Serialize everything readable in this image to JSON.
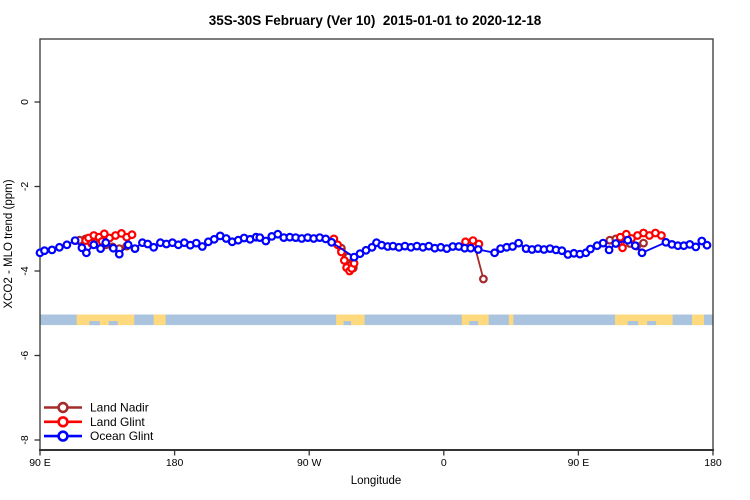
{
  "chart_data": {
    "type": "line",
    "title": "35S-30S February (Ver 10)  2015-01-01 to 2020-12-18",
    "xlabel": "Longitude",
    "ylabel": "XCO2 - MLO trend (ppm)",
    "x_axis": {
      "note": "axis spans 450 degrees of longitude starting at 90E, wrapping through 180, 90W, 0, 90E to 180",
      "range_deg": [
        0,
        450
      ],
      "ticks_deg": [
        0,
        90,
        180,
        270,
        360,
        450
      ],
      "tick_labels": [
        "90 E",
        "180",
        "90 W",
        "0",
        "90 E",
        "180"
      ]
    },
    "y_axis": {
      "ticks": [
        0,
        -2,
        -4,
        -6,
        -8
      ],
      "tick_labels": [
        "0",
        "-2",
        "-4",
        "-6",
        "-8"
      ],
      "range": [
        -8.25,
        1.45
      ],
      "grid": false
    },
    "map_band": {
      "description": "world-map strip showing ocean/land along the longitude axis",
      "y_top_ppm": -5.03,
      "y_bottom_ppm": -5.28,
      "ocean_color": "#aac3df",
      "land_color": "#fed97e",
      "land_patches_deg": [
        [
          24.5,
          63
        ],
        [
          76,
          84
        ],
        [
          198,
          217
        ],
        [
          282,
          300
        ],
        [
          313.5,
          316.5
        ],
        [
          384.5,
          423
        ],
        [
          436,
          444
        ]
      ],
      "coast_inlets_deg": [
        [
          33,
          40
        ],
        [
          46,
          52
        ],
        [
          203,
          208
        ],
        [
          287,
          293
        ],
        [
          393,
          400
        ],
        [
          406,
          412
        ]
      ]
    },
    "legend": {
      "position": "bottom-left",
      "entries": [
        "Land Nadir",
        "Land Glint",
        "Ocean Glint"
      ]
    },
    "series": [
      {
        "name": "Land Nadir",
        "color": "#a52a2a",
        "segments": [
          [
            [
              26.5,
              -3.27
            ],
            [
              30.5,
              -3.24
            ],
            [
              34.5,
              -3.3
            ],
            [
              40,
              -3.33
            ],
            [
              44,
              -3.38
            ],
            [
              48.5,
              -3.43
            ],
            [
              53,
              -3.47
            ],
            [
              58,
              -3.41
            ]
          ],
          [
            [
              201.5,
              -3.46
            ],
            [
              206,
              -3.67
            ],
            [
              208,
              -3.86
            ],
            [
              209.5,
              -3.93
            ]
          ],
          [
            [
              290.5,
              -3.39
            ],
            [
              296.5,
              -4.19
            ]
          ],
          [
            [
              381,
              -3.27
            ],
            [
              385,
              -3.24
            ],
            [
              394.5,
              -3.35
            ],
            [
              399,
              -3.41
            ],
            [
              403.5,
              -3.34
            ]
          ]
        ]
      },
      {
        "name": "Land Glint",
        "color": "#ff0000",
        "segments": [
          [
            [
              30.5,
              -3.28
            ],
            [
              32.5,
              -3.22
            ],
            [
              34.5,
              -3.35
            ],
            [
              36,
              -3.16
            ],
            [
              39.5,
              -3.2
            ],
            [
              41.5,
              -3.3
            ],
            [
              43,
              -3.12
            ],
            [
              46.5,
              -3.22
            ],
            [
              50.5,
              -3.16
            ],
            [
              54.5,
              -3.11
            ],
            [
              58,
              -3.2
            ],
            [
              61.5,
              -3.14
            ]
          ],
          [
            [
              196.5,
              -3.24
            ],
            [
              199,
              -3.38
            ],
            [
              201.5,
              -3.55
            ],
            [
              203.5,
              -3.75
            ],
            [
              205,
              -3.92
            ],
            [
              207,
              -4.0
            ],
            [
              208.5,
              -3.94
            ],
            [
              210,
              -3.82
            ]
          ],
          [
            [
              284.5,
              -3.31
            ],
            [
              289.5,
              -3.28
            ],
            [
              293.5,
              -3.36
            ]
          ],
          [
            [
              388,
              -3.2
            ],
            [
              389.5,
              -3.45
            ],
            [
              392,
              -3.13
            ],
            [
              395.5,
              -3.23
            ],
            [
              399.5,
              -3.16
            ],
            [
              403.5,
              -3.1
            ],
            [
              407.5,
              -3.16
            ],
            [
              411.5,
              -3.1
            ],
            [
              415.5,
              -3.16
            ]
          ]
        ]
      },
      {
        "name": "Ocean Glint",
        "color": "#0000ff",
        "segments": [
          [
            [
              0,
              -3.57
            ],
            [
              3,
              -3.52
            ],
            [
              8,
              -3.5
            ],
            [
              13,
              -3.44
            ],
            [
              18,
              -3.38
            ],
            [
              23.5,
              -3.28
            ],
            [
              28,
              -3.45
            ],
            [
              31,
              -3.57
            ],
            [
              36,
              -3.38
            ],
            [
              40.5,
              -3.47
            ],
            [
              44,
              -3.33
            ],
            [
              49,
              -3.46
            ],
            [
              53,
              -3.6
            ],
            [
              59,
              -3.38
            ],
            [
              63.5,
              -3.47
            ],
            [
              68.5,
              -3.33
            ],
            [
              72,
              -3.36
            ],
            [
              76,
              -3.44
            ],
            [
              80.5,
              -3.33
            ],
            [
              84.5,
              -3.36
            ],
            [
              88.5,
              -3.33
            ],
            [
              92.5,
              -3.38
            ],
            [
              96.5,
              -3.33
            ],
            [
              100.5,
              -3.39
            ],
            [
              104.5,
              -3.34
            ],
            [
              108.5,
              -3.42
            ],
            [
              112.5,
              -3.31
            ],
            [
              116.5,
              -3.25
            ],
            [
              120.5,
              -3.17
            ],
            [
              124.5,
              -3.23
            ],
            [
              128.5,
              -3.31
            ],
            [
              132.5,
              -3.27
            ],
            [
              136.5,
              -3.22
            ],
            [
              140.5,
              -3.25
            ],
            [
              144.5,
              -3.2
            ],
            [
              147,
              -3.21
            ],
            [
              151,
              -3.29
            ],
            [
              155,
              -3.18
            ],
            [
              159,
              -3.13
            ],
            [
              163,
              -3.21
            ],
            [
              167,
              -3.2
            ],
            [
              171,
              -3.21
            ],
            [
              175,
              -3.23
            ],
            [
              179,
              -3.21
            ],
            [
              183,
              -3.23
            ],
            [
              187,
              -3.21
            ],
            [
              191,
              -3.24
            ],
            [
              195,
              -3.32
            ],
            [
              210,
              -3.67
            ],
            [
              214,
              -3.59
            ],
            [
              218,
              -3.51
            ],
            [
              222,
              -3.44
            ],
            [
              225,
              -3.33
            ],
            [
              228.5,
              -3.39
            ],
            [
              232.5,
              -3.42
            ],
            [
              236,
              -3.41
            ],
            [
              240,
              -3.44
            ],
            [
              244,
              -3.41
            ],
            [
              248,
              -3.44
            ],
            [
              252,
              -3.41
            ],
            [
              256,
              -3.44
            ],
            [
              260,
              -3.41
            ],
            [
              264,
              -3.46
            ],
            [
              268,
              -3.44
            ],
            [
              272,
              -3.47
            ],
            [
              276,
              -3.42
            ],
            [
              280,
              -3.42
            ],
            [
              284,
              -3.46
            ],
            [
              288,
              -3.46
            ],
            [
              293,
              -3.49
            ],
            [
              304,
              -3.57
            ],
            [
              308,
              -3.47
            ],
            [
              312,
              -3.44
            ],
            [
              316,
              -3.42
            ],
            [
              320,
              -3.34
            ],
            [
              325,
              -3.47
            ],
            [
              329,
              -3.49
            ],
            [
              333,
              -3.47
            ],
            [
              337,
              -3.49
            ],
            [
              341,
              -3.47
            ],
            [
              345,
              -3.5
            ],
            [
              349,
              -3.52
            ],
            [
              353,
              -3.61
            ],
            [
              357,
              -3.58
            ],
            [
              361,
              -3.6
            ],
            [
              365,
              -3.57
            ],
            [
              368,
              -3.48
            ],
            [
              372.5,
              -3.4
            ],
            [
              376.5,
              -3.34
            ],
            [
              380.5,
              -3.5
            ],
            [
              385,
              -3.35
            ],
            [
              393,
              -3.27
            ],
            [
              398,
              -3.4
            ],
            [
              402.5,
              -3.57
            ],
            [
              418.5,
              -3.32
            ],
            [
              422.5,
              -3.37
            ],
            [
              426.5,
              -3.4
            ],
            [
              430.5,
              -3.4
            ],
            [
              434.5,
              -3.37
            ],
            [
              438.5,
              -3.43
            ],
            [
              442.5,
              -3.29
            ],
            [
              446,
              -3.39
            ]
          ]
        ]
      }
    ]
  }
}
